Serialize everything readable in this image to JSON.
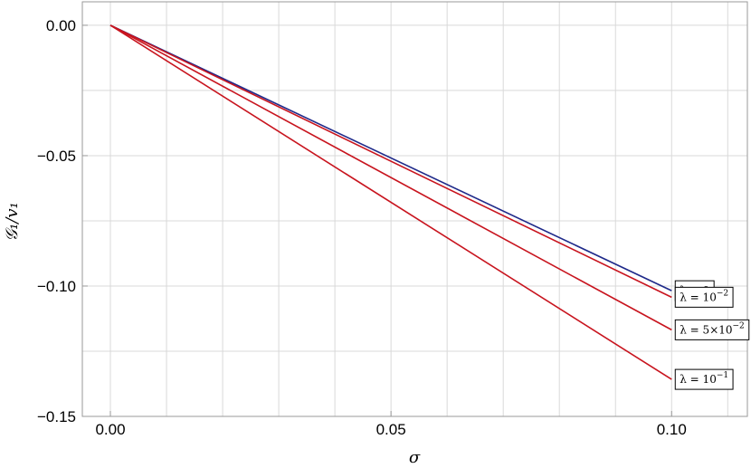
{
  "chart_data": {
    "type": "line",
    "xlabel": "σ",
    "ylabel": "𝒢₁/v₁",
    "xlim": [
      -0.005,
      0.1135
    ],
    "ylim": [
      -0.15,
      0.009
    ],
    "x_ticks": [
      {
        "value": 0.0,
        "label": "0.00"
      },
      {
        "value": 0.05,
        "label": "0.05"
      },
      {
        "value": 0.1,
        "label": "0.10"
      }
    ],
    "y_ticks": [
      {
        "value": 0.0,
        "label": "0.00"
      },
      {
        "value": -0.05,
        "label": "−0.05"
      },
      {
        "value": -0.1,
        "label": "−0.10"
      },
      {
        "value": -0.15,
        "label": "−0.15"
      }
    ],
    "x_gridlines": [
      0.0,
      0.01,
      0.02,
      0.03,
      0.04,
      0.05,
      0.06,
      0.07,
      0.08,
      0.09,
      0.1,
      0.11
    ],
    "y_gridlines": [
      0.0,
      -0.025,
      -0.05,
      -0.075,
      -0.1,
      -0.125,
      -0.15
    ],
    "grid": true,
    "series": [
      {
        "name": "λ = 0",
        "color": "#1f2a8a",
        "x": [
          0.0,
          0.1
        ],
        "y": [
          0.0,
          -0.1018
        ]
      },
      {
        "name": "λ = 10⁻²",
        "color": "#c8141e",
        "x": [
          0.0,
          0.1
        ],
        "y": [
          0.0,
          -0.1043
        ]
      },
      {
        "name": "λ = 5×10⁻²",
        "color": "#c8141e",
        "x": [
          0.0,
          0.1
        ],
        "y": [
          0.0,
          -0.1168
        ]
      },
      {
        "name": "λ = 10⁻¹",
        "color": "#c8141e",
        "x": [
          0.0,
          0.1
        ],
        "y": [
          0.0,
          -0.1358
        ]
      }
    ],
    "legend": [
      {
        "base": "λ = 0",
        "sup": ""
      },
      {
        "base": "λ = 10",
        "sup": "−2"
      },
      {
        "base": "λ = 5×10",
        "sup": "−2"
      },
      {
        "base": "λ = 10",
        "sup": "−1"
      }
    ],
    "legend_placement": "line-end labels"
  }
}
